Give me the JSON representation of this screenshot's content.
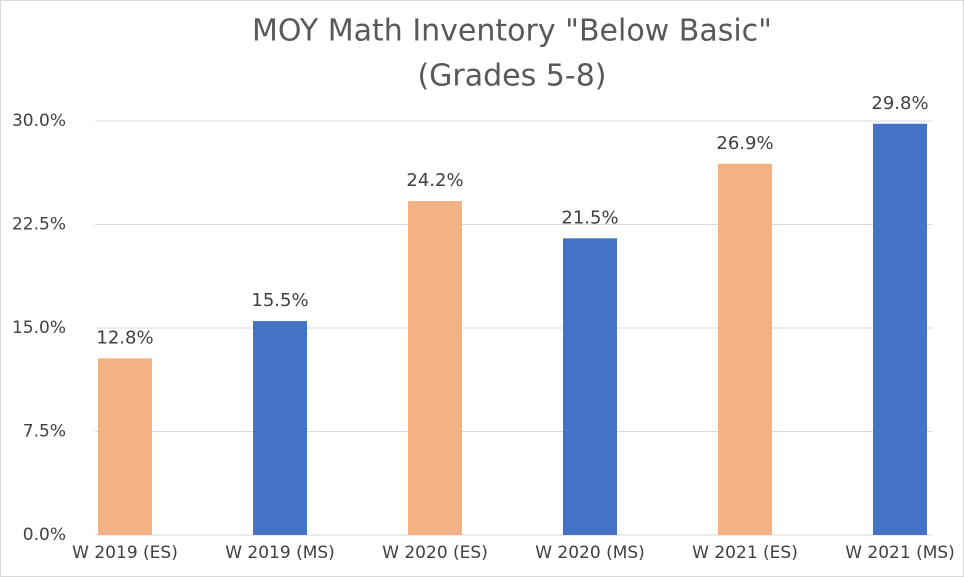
{
  "chart_data": {
    "type": "bar",
    "title": [
      "MOY Math Inventory \"Below Basic\"",
      "(Grades 5-8)"
    ],
    "categories": [
      "W 2019 (ES)",
      "W 2019 (MS)",
      "W 2020 (ES)",
      "W 2020 (MS)",
      "W 2021 (ES)",
      "W 2021 (MS)"
    ],
    "values": [
      12.8,
      15.5,
      24.2,
      21.5,
      26.9,
      29.8
    ],
    "value_labels": [
      "12.8%",
      "15.5%",
      "24.2%",
      "21.5%",
      "26.9%",
      "29.8%"
    ],
    "colors": [
      "#f4b183",
      "#4472c4",
      "#f4b183",
      "#4472c4",
      "#f4b183",
      "#4472c4"
    ],
    "ylim": [
      0,
      30
    ],
    "yticks": [
      {
        "value": 0,
        "label": "0.0%"
      },
      {
        "value": 7.5,
        "label": "7.5%"
      },
      {
        "value": 15,
        "label": "15.0%"
      },
      {
        "value": 22.5,
        "label": "22.5%"
      },
      {
        "value": 30,
        "label": "30.0%"
      }
    ],
    "grid": true
  }
}
